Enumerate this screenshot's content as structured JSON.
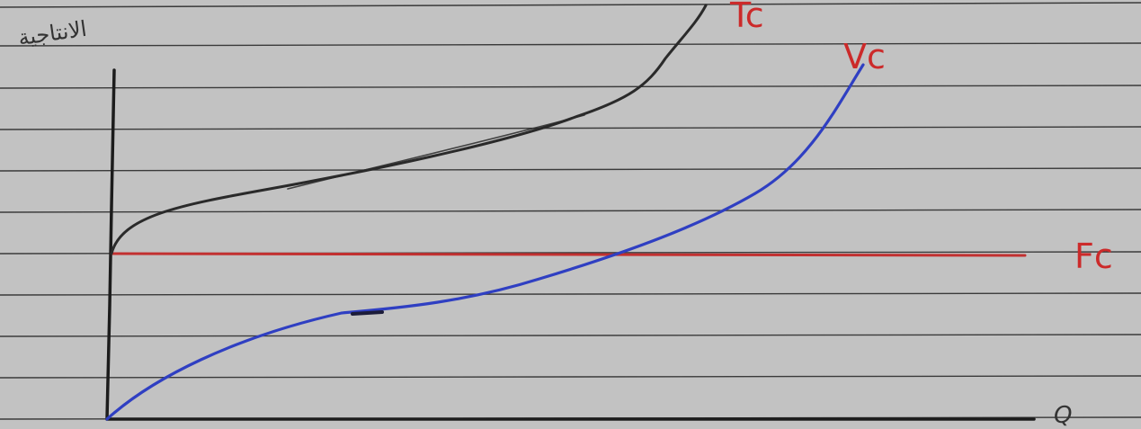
{
  "colors": {
    "paper": "#c2c2c2",
    "rule_lines": "#3a3a3a",
    "axis": "#1c1c1c",
    "tc_curve": "#2a2a2a",
    "vc_curve": "#2f3fc2",
    "fc_line": "#c23030",
    "label_red": "#cc2a2a",
    "label_dark": "#333333"
  },
  "labels": {
    "y_axis": "الانتاجية",
    "tc": "Tc",
    "vc": "Vc",
    "fc": "Fc",
    "x_axis": "Q"
  },
  "curves": [
    "tc-curve",
    "vc-curve",
    "fc-line"
  ]
}
